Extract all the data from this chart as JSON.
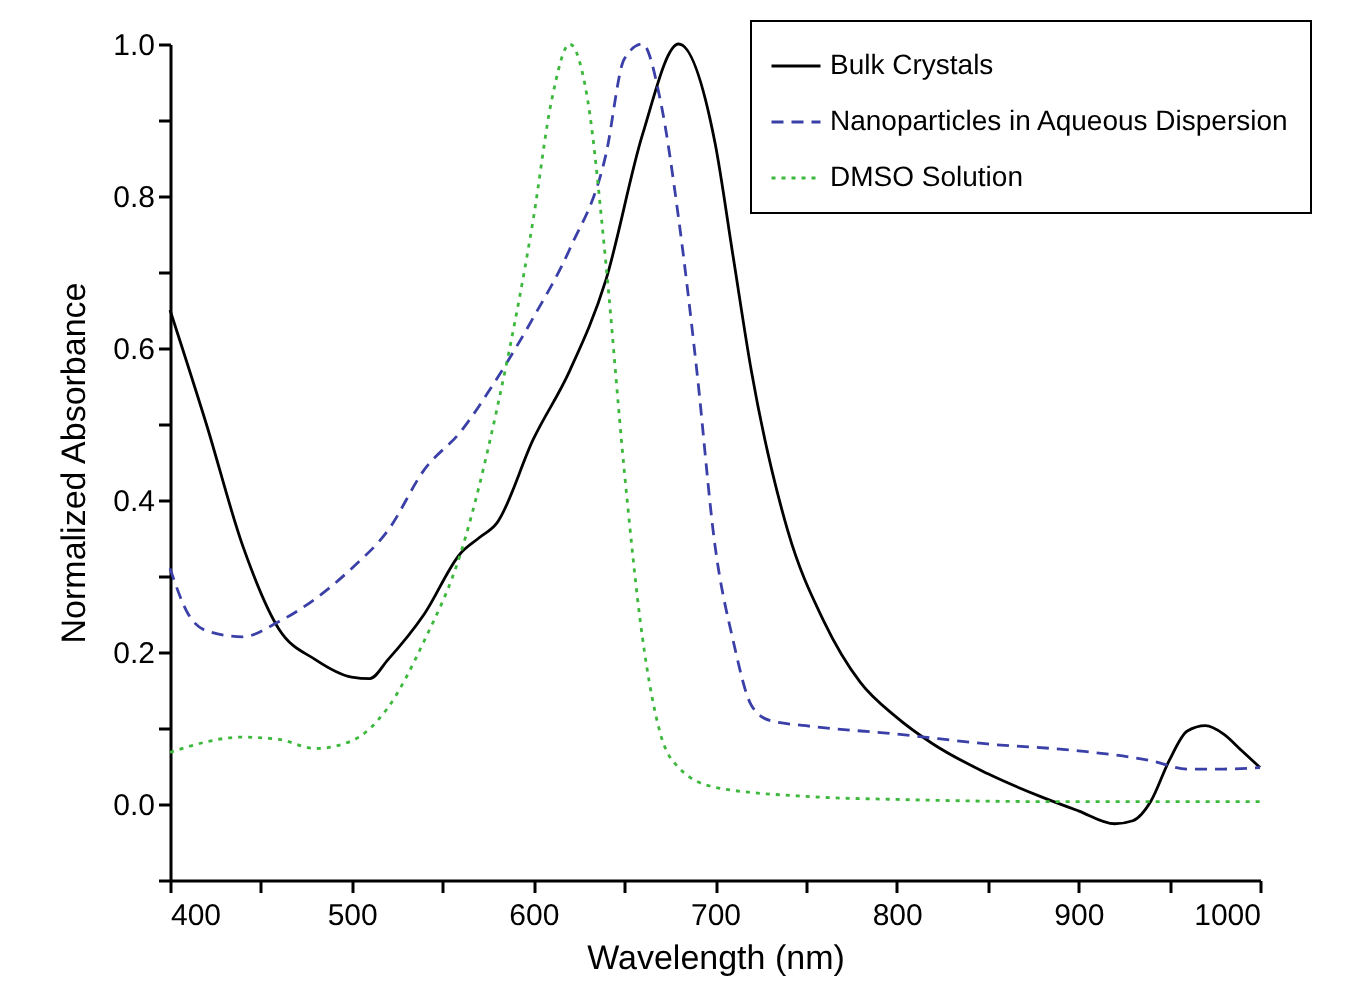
{
  "chart_data": {
    "type": "line",
    "xlabel": "Wavelength (nm)",
    "ylabel": "Normalized Absorbance",
    "xlim": [
      400,
      1000
    ],
    "ylim": [
      -0.1,
      1.0
    ],
    "xticks": [
      400,
      {
        "value": 450,
        "label": null
      },
      500,
      {
        "value": 550,
        "label": null
      },
      600,
      {
        "value": 650,
        "label": null
      },
      700,
      {
        "value": 750,
        "label": null
      },
      800,
      {
        "value": 850,
        "label": null
      },
      900,
      {
        "value": 950,
        "label": null
      },
      1000
    ],
    "yticks": [
      {
        "value": -0.1,
        "label": null
      },
      {
        "value": 0,
        "label": "0.0"
      },
      {
        "value": 0.1,
        "label": null
      },
      0.2,
      {
        "value": 0.3,
        "label": null
      },
      0.4,
      {
        "value": 0.5,
        "label": null
      },
      0.6,
      {
        "value": 0.7,
        "label": null
      },
      0.8,
      {
        "value": 0.9,
        "label": null
      },
      {
        "value": 1.0,
        "label": "1.0"
      }
    ],
    "grid": false,
    "legend": "top right",
    "marker": "none",
    "series": [
      {
        "name": "Bulk Crystals",
        "color": "#000000",
        "line_style": "solid",
        "x": [
          400,
          420,
          440,
          460,
          480,
          500,
          510,
          520,
          540,
          560,
          570,
          580,
          600,
          620,
          640,
          660,
          680,
          700,
          710,
          720,
          740,
          760,
          780,
          800,
          820,
          850,
          880,
          900,
          920,
          930,
          940,
          950,
          960,
          970,
          980,
          990,
          1000
        ],
        "values": [
          0.65,
          0.5,
          0.34,
          0.23,
          0.19,
          0.167,
          0.165,
          0.19,
          0.25,
          0.33,
          0.35,
          0.37,
          0.48,
          0.57,
          0.69,
          0.88,
          1.0,
          0.87,
          0.72,
          0.57,
          0.36,
          0.24,
          0.16,
          0.114,
          0.079,
          0.04,
          0.009,
          -0.009,
          -0.026,
          -0.022,
          0.004,
          0.057,
          0.096,
          0.103,
          0.092,
          0.07,
          0.048
        ]
      },
      {
        "name": "Nanoparticles in Aqueous Dispersion",
        "color": "#3a40a8",
        "line_style": "dashed",
        "x": [
          400,
          410,
          420,
          440,
          460,
          480,
          500,
          520,
          540,
          560,
          580,
          600,
          620,
          640,
          650,
          660,
          670,
          680,
          690,
          700,
          710,
          720,
          730,
          750,
          800,
          850,
          900,
          940,
          960,
          980,
          1000
        ],
        "values": [
          0.31,
          0.25,
          0.228,
          0.22,
          0.24,
          0.27,
          0.31,
          0.36,
          0.44,
          0.49,
          0.56,
          0.64,
          0.73,
          0.855,
          0.98,
          1.0,
          0.925,
          0.77,
          0.57,
          0.34,
          0.215,
          0.13,
          0.11,
          0.103,
          0.092,
          0.079,
          0.07,
          0.057,
          0.046,
          0.046,
          0.048
        ]
      },
      {
        "name": "DMSO Solution",
        "color": "#3cb83c",
        "line_style": "dotted",
        "x": [
          400,
          440,
          460,
          480,
          500,
          520,
          540,
          560,
          580,
          600,
          610,
          620,
          630,
          640,
          650,
          660,
          670,
          680,
          700,
          750,
          800,
          900,
          1000
        ],
        "values": [
          0.068,
          0.088,
          0.085,
          0.073,
          0.083,
          0.127,
          0.215,
          0.33,
          0.52,
          0.77,
          0.925,
          1.0,
          0.925,
          0.71,
          0.44,
          0.22,
          0.092,
          0.048,
          0.022,
          0.01,
          0.006,
          0.003,
          0.003
        ]
      }
    ]
  }
}
